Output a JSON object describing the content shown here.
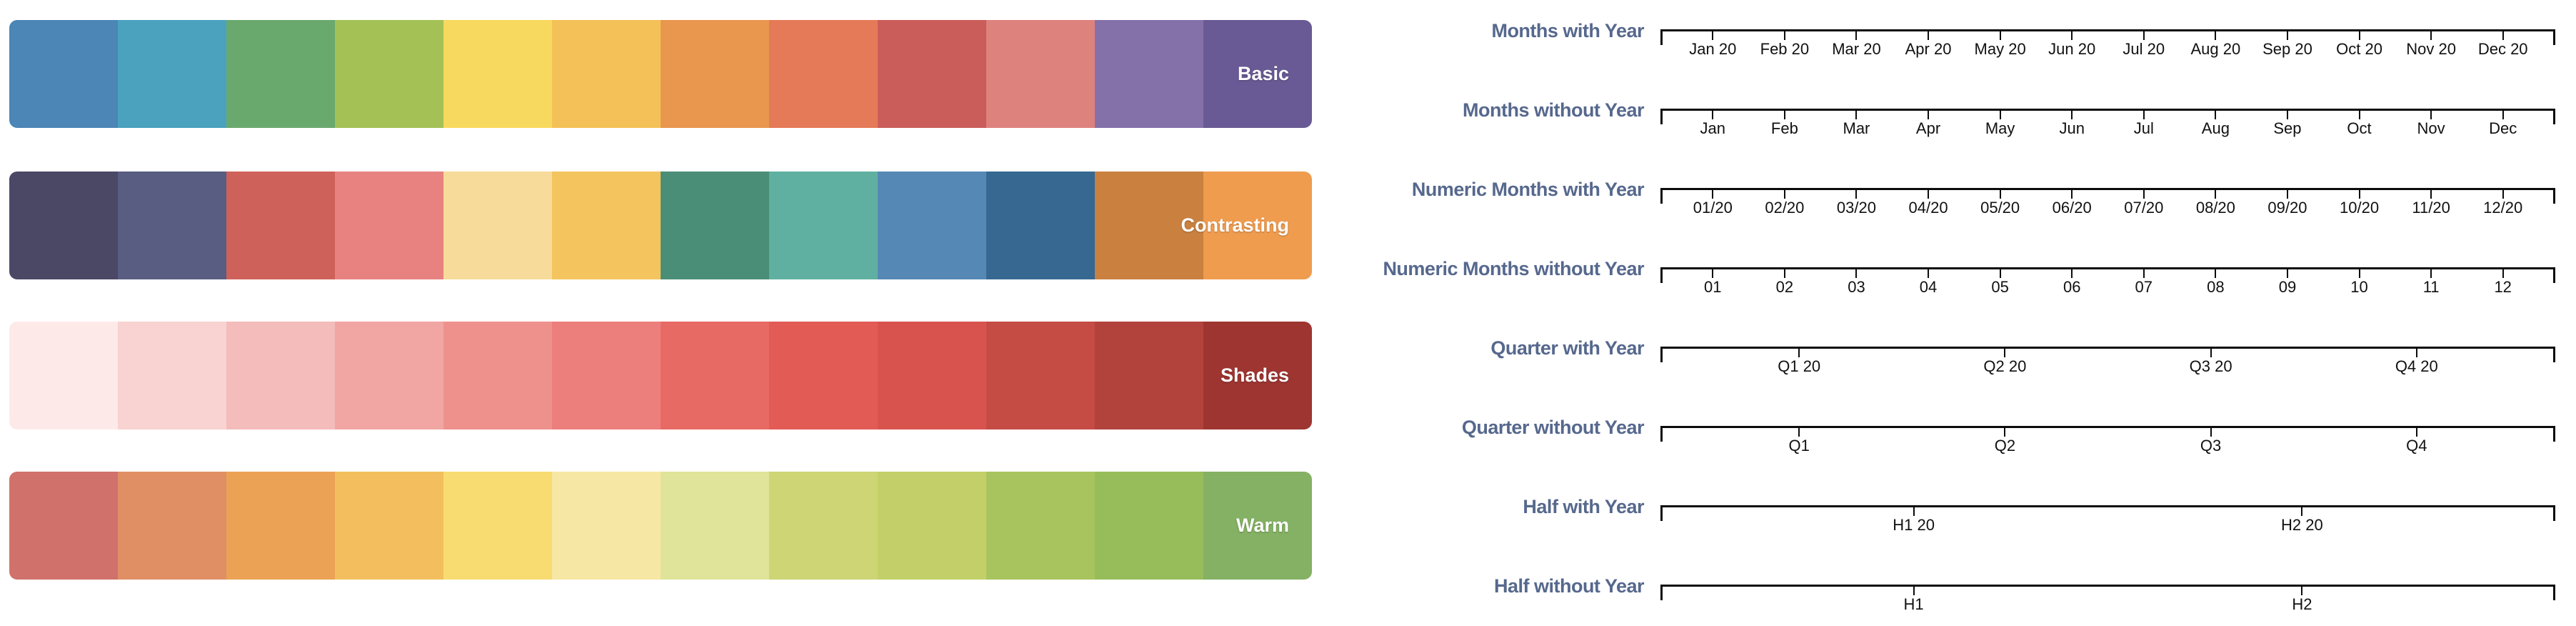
{
  "palettes": {
    "rows": [
      {
        "name": "Basic",
        "colors": [
          "#4b86b6",
          "#4aa2bf",
          "#6aa96e",
          "#a4c156",
          "#f8d95f",
          "#f4c158",
          "#e9964e",
          "#e47a57",
          "#ca5d5a",
          "#de827d",
          "#8471aa",
          "#695a95"
        ]
      },
      {
        "name": "Contrasting",
        "colors": [
          "#4a4865",
          "#585d81",
          "#cf615b",
          "#e78280",
          "#f7db9a",
          "#f4c45e",
          "#4b8e77",
          "#5fb0a0",
          "#5588b5",
          "#376892",
          "#ca8140",
          "#ef9c4f"
        ]
      },
      {
        "name": "Shades",
        "colors": [
          "#fdeae8",
          "#f8d3d1",
          "#f4bcba",
          "#f1a6a3",
          "#ee918d",
          "#ec7f7b",
          "#e86a64",
          "#e25b55",
          "#d9534e",
          "#c54b45",
          "#b2423c",
          "#9e3531"
        ]
      },
      {
        "name": "Warm",
        "colors": [
          "#d0716b",
          "#e08f64",
          "#eba254",
          "#f3bf5e",
          "#f8dc72",
          "#f7e7a4",
          "#dfe49a",
          "#cdd575",
          "#c3cf68",
          "#a8c45e",
          "#97bc5a",
          "#84b163"
        ]
      }
    ]
  },
  "axes": {
    "label_color": "#56688d",
    "axis_color": "#0c0c0c",
    "rows": [
      {
        "label": "Months with Year",
        "ticks": [
          "Jan 20",
          "Feb 20",
          "Mar 20",
          "Apr 20",
          "May 20",
          "Jun 20",
          "Jul 20",
          "Aug 20",
          "Sep 20",
          "Oct 20",
          "Nov 20",
          "Dec 20"
        ]
      },
      {
        "label": "Months without Year",
        "ticks": [
          "Jan",
          "Feb",
          "Mar",
          "Apr",
          "May",
          "Jun",
          "Jul",
          "Aug",
          "Sep",
          "Oct",
          "Nov",
          "Dec"
        ]
      },
      {
        "label": "Numeric Months with Year",
        "ticks": [
          "01/20",
          "02/20",
          "03/20",
          "04/20",
          "05/20",
          "06/20",
          "07/20",
          "08/20",
          "09/20",
          "10/20",
          "11/20",
          "12/20"
        ]
      },
      {
        "label": "Numeric Months without Year",
        "ticks": [
          "01",
          "02",
          "03",
          "04",
          "05",
          "06",
          "07",
          "08",
          "09",
          "10",
          "11",
          "12"
        ]
      },
      {
        "label": "Quarter with Year",
        "ticks": [
          "Q1 20",
          "Q2 20",
          "Q3 20",
          "Q4 20"
        ]
      },
      {
        "label": "Quarter without Year",
        "ticks": [
          "Q1",
          "Q2",
          "Q3",
          "Q4"
        ]
      },
      {
        "label": "Half with Year",
        "ticks": [
          "H1 20",
          "H2 20"
        ]
      },
      {
        "label": "Half without Year",
        "ticks": [
          "H1",
          "H2"
        ]
      }
    ]
  }
}
